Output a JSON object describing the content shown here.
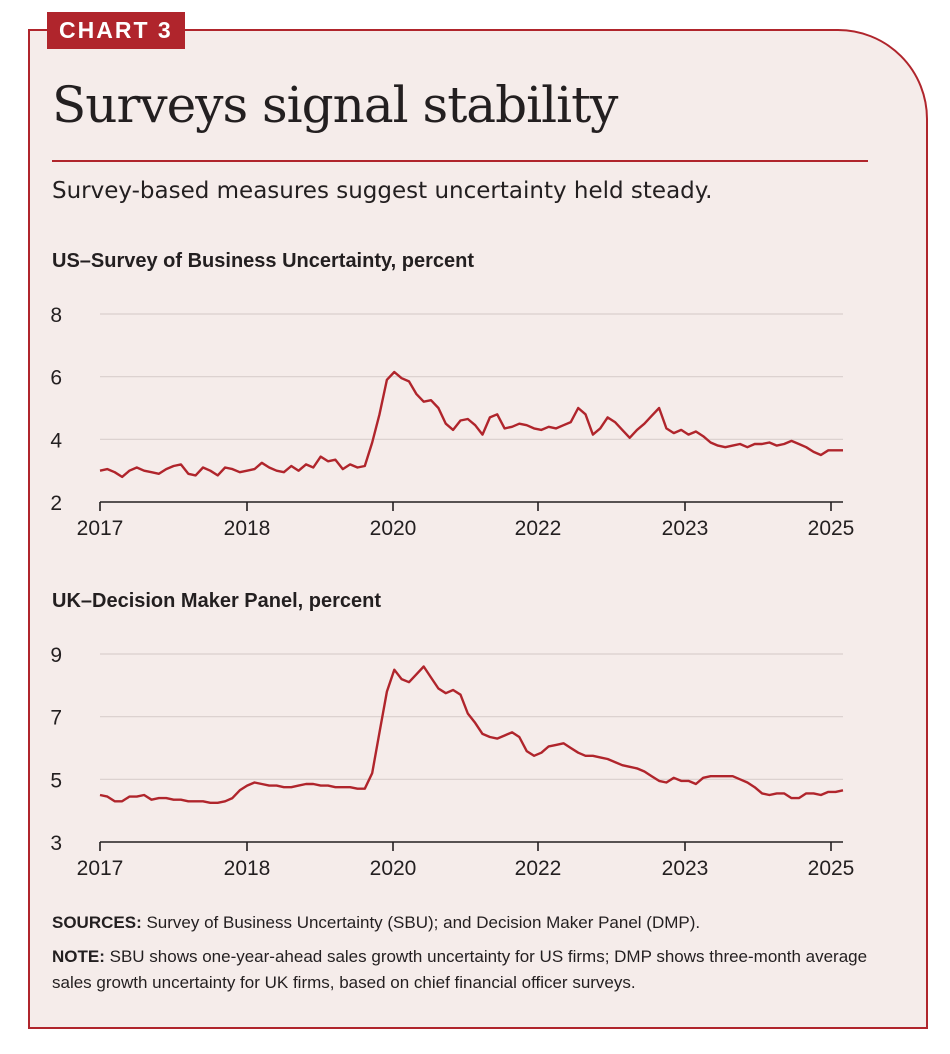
{
  "tag": "CHART 3",
  "title": "Surveys signal stability",
  "subtitle": "Survey-based measures suggest uncertainty held steady.",
  "colors": {
    "accent": "#b0252c",
    "background": "#f5ecea",
    "grid": "#d9cfcd",
    "text": "#231f20"
  },
  "chart_data": [
    {
      "type": "line",
      "title": "US–Survey of Business Uncertainty, percent",
      "xlabel": "",
      "ylabel": "",
      "x_ticks": [
        "2017",
        "2018",
        "2020",
        "2022",
        "2023",
        "2025"
      ],
      "ylim": [
        2,
        8
      ],
      "y_ticks": [
        2,
        4,
        6,
        8
      ],
      "grid": true,
      "series": [
        {
          "color": "#b0252c",
          "values": [
            3.0,
            3.05,
            2.95,
            2.8,
            3.0,
            3.1,
            3.0,
            2.95,
            2.9,
            3.05,
            3.15,
            3.2,
            2.9,
            2.85,
            3.1,
            3.0,
            2.85,
            3.1,
            3.05,
            2.95,
            3.0,
            3.05,
            3.25,
            3.1,
            3.0,
            2.95,
            3.15,
            3.0,
            3.2,
            3.1,
            3.45,
            3.3,
            3.35,
            3.05,
            3.2,
            3.1,
            3.15,
            3.9,
            4.8,
            5.9,
            6.15,
            5.95,
            5.85,
            5.45,
            5.2,
            5.25,
            5.0,
            4.5,
            4.3,
            4.6,
            4.65,
            4.45,
            4.15,
            4.7,
            4.8,
            4.35,
            4.4,
            4.5,
            4.45,
            4.35,
            4.3,
            4.4,
            4.35,
            4.45,
            4.55,
            5.0,
            4.8,
            4.15,
            4.35,
            4.7,
            4.55,
            4.3,
            4.05,
            4.3,
            4.5,
            4.75,
            5.0,
            4.35,
            4.2,
            4.3,
            4.15,
            4.25,
            4.1,
            3.9,
            3.8,
            3.75,
            3.8,
            3.85,
            3.75,
            3.85,
            3.85,
            3.9,
            3.8,
            3.85,
            3.95,
            3.85,
            3.75,
            3.6,
            3.5,
            3.65,
            3.65,
            3.65
          ]
        }
      ]
    },
    {
      "type": "line",
      "title": "UK–Decision Maker Panel, percent",
      "xlabel": "",
      "ylabel": "",
      "x_ticks": [
        "2017",
        "2018",
        "2020",
        "2022",
        "2023",
        "2025"
      ],
      "ylim": [
        3,
        9
      ],
      "y_ticks": [
        3,
        5,
        7,
        9
      ],
      "grid": true,
      "series": [
        {
          "color": "#b0252c",
          "values": [
            4.5,
            4.45,
            4.3,
            4.3,
            4.45,
            4.45,
            4.5,
            4.35,
            4.4,
            4.4,
            4.35,
            4.35,
            4.3,
            4.3,
            4.3,
            4.25,
            4.25,
            4.3,
            4.4,
            4.65,
            4.8,
            4.9,
            4.85,
            4.8,
            4.8,
            4.75,
            4.75,
            4.8,
            4.85,
            4.85,
            4.8,
            4.8,
            4.75,
            4.75,
            4.75,
            4.7,
            4.7,
            5.2,
            6.5,
            7.8,
            8.5,
            8.2,
            8.1,
            8.35,
            8.6,
            8.25,
            7.9,
            7.75,
            7.85,
            7.7,
            7.1,
            6.8,
            6.45,
            6.35,
            6.3,
            6.4,
            6.5,
            6.35,
            5.9,
            5.75,
            5.85,
            6.05,
            6.1,
            6.15,
            6.0,
            5.85,
            5.75,
            5.75,
            5.7,
            5.65,
            5.55,
            5.45,
            5.4,
            5.35,
            5.25,
            5.1,
            4.95,
            4.9,
            5.05,
            4.95,
            4.95,
            4.85,
            5.05,
            5.1,
            5.1,
            5.1,
            5.1,
            5.0,
            4.9,
            4.75,
            4.55,
            4.5,
            4.55,
            4.55,
            4.4,
            4.4,
            4.55,
            4.55,
            4.5,
            4.6,
            4.6,
            4.65
          ]
        }
      ]
    }
  ],
  "footer": {
    "sources_label": "SOURCES:",
    "sources_text": " Survey of Business Uncertainty (SBU); and Decision Maker Panel (DMP).",
    "note_label": "NOTE:",
    "note_text": " SBU shows one-year-ahead sales growth uncertainty for US firms; DMP shows three-month average sales growth uncertainty for UK firms, based on chief financial officer surveys."
  }
}
